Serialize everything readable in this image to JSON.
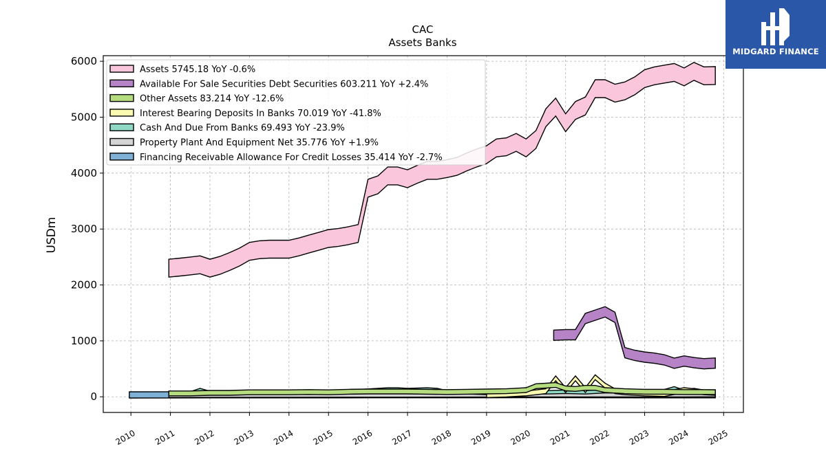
{
  "logo": {
    "text": "MIDGARD FINANCE",
    "background": "#2a57a8"
  },
  "chart_data": {
    "type": "area",
    "title": "CAC",
    "subtitle": "Assets Banks",
    "xlabel": "",
    "ylabel": "USDm",
    "xlim": [
      2009.3,
      2025.5
    ],
    "ylim": [
      -280,
      6100
    ],
    "xticks": [
      "2010",
      "2011",
      "2012",
      "2013",
      "2014",
      "2015",
      "2016",
      "2017",
      "2018",
      "2019",
      "2020",
      "2021",
      "2022",
      "2023",
      "2024",
      "2025"
    ],
    "yticks": [
      "0",
      "1000",
      "2000",
      "3000",
      "4000",
      "5000",
      "6000"
    ],
    "grid": true,
    "legend_position": "top-left",
    "series": [
      {
        "name": "Assets  5745.18 YoY -0.6%",
        "color": "#f9c6dc",
        "x": [
          2010.96,
          2011.25,
          2011.5,
          2011.75,
          2012.0,
          2012.25,
          2012.5,
          2012.75,
          2013.0,
          2013.25,
          2013.5,
          2013.75,
          2014.0,
          2014.25,
          2014.5,
          2014.75,
          2015.0,
          2015.25,
          2015.5,
          2015.75,
          2016.0,
          2016.25,
          2016.5,
          2016.75,
          2017.0,
          2017.25,
          2017.5,
          2017.75,
          2018.0,
          2018.25,
          2018.5,
          2018.75,
          2019.0,
          2019.25,
          2019.5,
          2019.75,
          2020.0,
          2020.25,
          2020.5,
          2020.75,
          2021.0,
          2021.25,
          2021.5,
          2021.75,
          2022.0,
          2022.25,
          2022.5,
          2022.75,
          2023.0,
          2023.25,
          2023.5,
          2023.75,
          2024.0,
          2024.25,
          2024.5,
          2024.79
        ],
        "values": [
          2300,
          2320,
          2340,
          2360,
          2300,
          2350,
          2420,
          2500,
          2600,
          2630,
          2640,
          2640,
          2640,
          2680,
          2730,
          2780,
          2830,
          2850,
          2880,
          2920,
          3730,
          3790,
          3950,
          3950,
          3900,
          3980,
          4050,
          4050,
          4080,
          4120,
          4200,
          4270,
          4330,
          4450,
          4470,
          4550,
          4450,
          4600,
          4990,
          5180,
          4900,
          5120,
          5200,
          5510,
          5510,
          5430,
          5470,
          5560,
          5690,
          5740,
          5770,
          5800,
          5720,
          5820,
          5740,
          5745
        ]
      },
      {
        "name": "Available For Sale Securities Debt Securities  603.211 YoY +2.4%",
        "color": "#b684c6",
        "x": [
          2020.7,
          2021.0,
          2021.25,
          2021.5,
          2021.75,
          2022.0,
          2022.25,
          2022.5,
          2022.75,
          2023.0,
          2023.25,
          2023.5,
          2023.75,
          2024.0,
          2024.25,
          2024.5,
          2024.79
        ],
        "values": [
          1100,
          1110,
          1110,
          1400,
          1460,
          1520,
          1420,
          790,
          740,
          710,
          690,
          660,
          600,
          640,
          610,
          590,
          603
        ]
      },
      {
        "name": "Other Assets  83.214 YoY -12.6%",
        "color": "#b5dd7f",
        "x": [
          2010.96,
          2011.5,
          2012.0,
          2012.5,
          2013.0,
          2013.5,
          2014.0,
          2014.5,
          2015.0,
          2015.5,
          2016.0,
          2016.5,
          2017.0,
          2017.5,
          2018.0,
          2018.5,
          2019.0,
          2019.5,
          2019.75,
          2020.0,
          2020.25,
          2020.5,
          2020.75,
          2021.0,
          2021.25,
          2021.5,
          2021.75,
          2022.0,
          2022.5,
          2023.0,
          2023.5,
          2024.0,
          2024.5,
          2024.79
        ],
        "values": [
          60,
          60,
          70,
          70,
          80,
          80,
          80,
          85,
          80,
          90,
          95,
          95,
          95,
          90,
          85,
          90,
          95,
          100,
          110,
          120,
          190,
          200,
          210,
          150,
          140,
          160,
          160,
          120,
          100,
          90,
          90,
          85,
          85,
          83
        ]
      },
      {
        "name": "Interest Bearing Deposits In Banks  70.019 YoY -41.8%",
        "color": "#fafab0",
        "x": [
          2019.0,
          2019.5,
          2020.0,
          2020.5,
          2020.75,
          2021.0,
          2021.25,
          2021.5,
          2021.75,
          2022.0,
          2022.25,
          2022.5,
          2023.0,
          2023.5,
          2024.0,
          2024.5,
          2024.79
        ],
        "values": [
          30,
          40,
          60,
          100,
          330,
          120,
          330,
          120,
          350,
          200,
          100,
          80,
          60,
          50,
          120,
          80,
          70
        ]
      },
      {
        "name": "Cash And Due From Banks  69.493 YoY -23.9%",
        "color": "#8fd8c5",
        "x": [
          2010.96,
          2011.5,
          2011.75,
          2012.0,
          2012.5,
          2013.0,
          2013.5,
          2014.0,
          2014.5,
          2015.0,
          2015.5,
          2016.0,
          2016.5,
          2016.75,
          2017.0,
          2017.5,
          2017.75,
          2018.0,
          2018.5,
          2019.0,
          2019.5,
          2020.0,
          2020.5,
          2021.0,
          2021.5,
          2022.0,
          2022.5,
          2023.0,
          2023.5,
          2023.75,
          2024.0,
          2024.25,
          2024.5,
          2024.79
        ],
        "values": [
          50,
          60,
          120,
          70,
          70,
          90,
          80,
          90,
          90,
          90,
          90,
          110,
          130,
          130,
          120,
          130,
          120,
          80,
          80,
          70,
          80,
          80,
          80,
          90,
          80,
          100,
          100,
          100,
          100,
          150,
          90,
          120,
          90,
          69
        ]
      },
      {
        "name": "Property Plant And Equipment Net  35.776 YoY +1.9%",
        "color": "#d4d4d4",
        "x": [
          2010.96,
          2012.0,
          2014.0,
          2016.0,
          2018.0,
          2020.0,
          2022.0,
          2024.0,
          2024.79
        ],
        "values": [
          25,
          26,
          28,
          30,
          31,
          33,
          34,
          35,
          35.8
        ]
      },
      {
        "name": "Financing Receivable Allowance For Credit Losses  35.414 YoY -2.7%",
        "color": "#7fb0d5",
        "x": [
          2009.96,
          2011.0,
          2012.0,
          2013.0,
          2014.0,
          2015.0,
          2016.0,
          2017.0,
          2018.0,
          2019.0,
          2020.0,
          2021.0,
          2022.0,
          2023.0,
          2024.0,
          2024.79
        ],
        "values": [
          34,
          35,
          36,
          36,
          36,
          36,
          37,
          37,
          37,
          37,
          38,
          38,
          37,
          36,
          36,
          35.4
        ]
      }
    ]
  }
}
